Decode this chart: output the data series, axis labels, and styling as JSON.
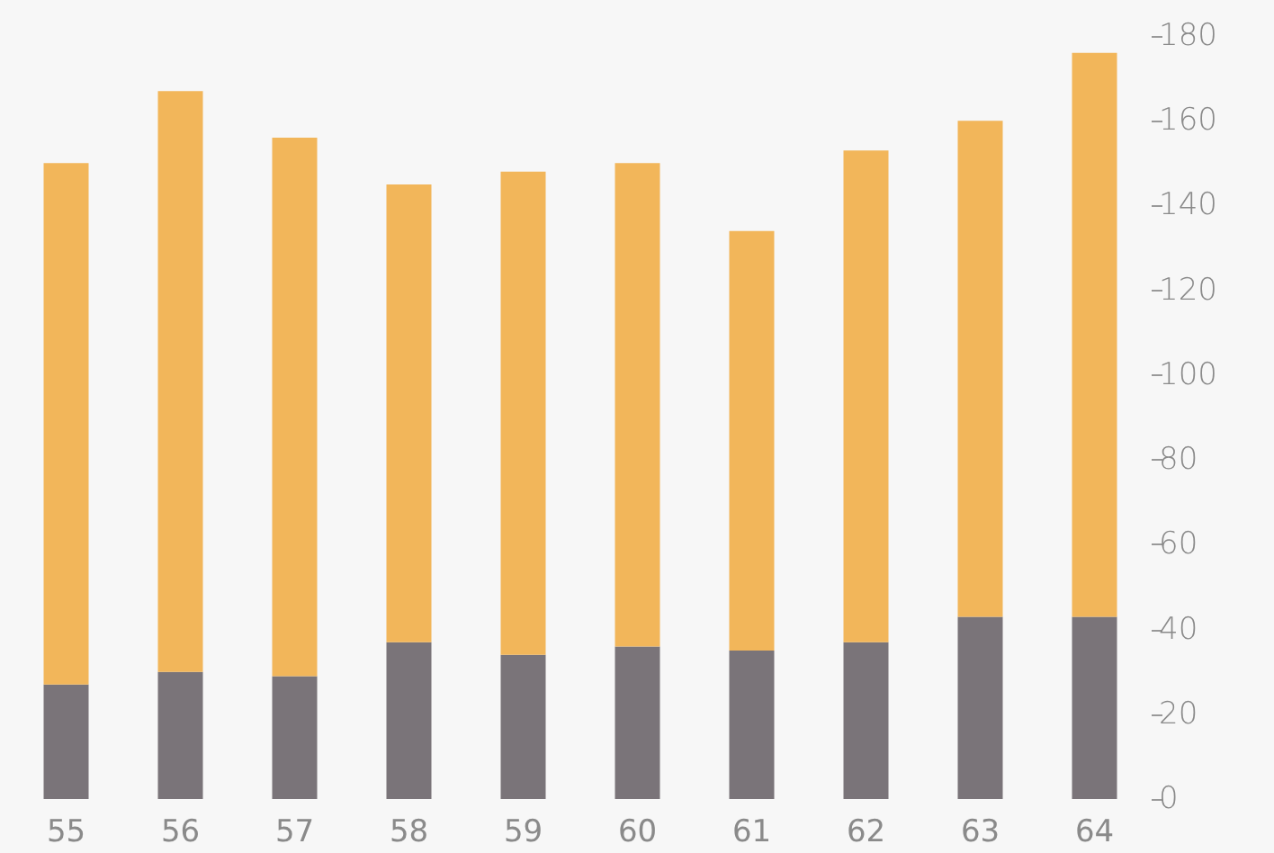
{
  "chart_data": {
    "type": "bar",
    "stacked": true,
    "categories": [
      "55",
      "56",
      "57",
      "58",
      "59",
      "60",
      "61",
      "62",
      "63",
      "64"
    ],
    "series": [
      {
        "color": "#7a7479",
        "values": [
          27,
          30,
          29,
          37,
          34,
          36,
          35,
          37,
          43,
          43
        ]
      },
      {
        "color": "#f2b65a",
        "values": [
          123,
          137,
          127,
          108,
          114,
          114,
          99,
          116,
          117,
          133
        ]
      }
    ],
    "ylim": [
      0,
      180
    ],
    "yticks": [
      0,
      20,
      40,
      60,
      80,
      100,
      120,
      140,
      160,
      180
    ],
    "grid": false
  }
}
